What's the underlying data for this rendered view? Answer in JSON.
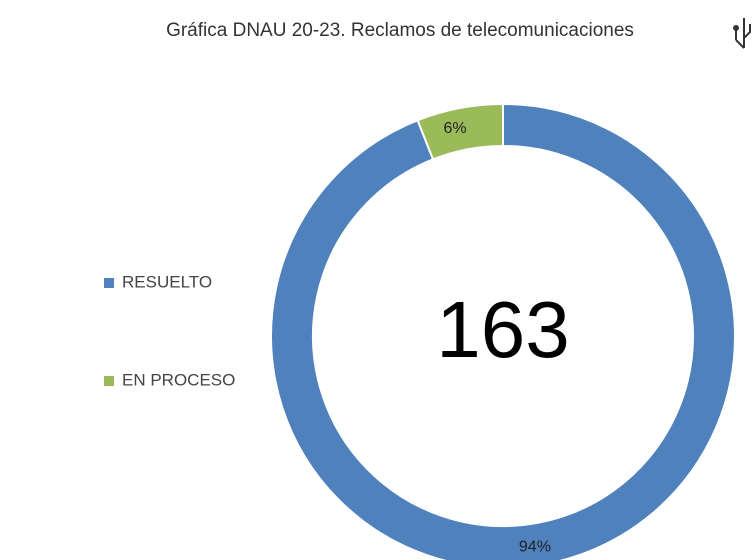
{
  "chart_data": {
    "type": "donut",
    "title": "Gráfica DNAU 20-23. Reclamos de telecomunicaciones",
    "total": 163,
    "categories": [
      "RESUELTO",
      "EN PROCESO"
    ],
    "values": [
      94,
      6
    ],
    "value_labels": [
      "94%",
      "6%"
    ],
    "colors": [
      "#4f81bd",
      "#9bbb59"
    ],
    "legend": "left"
  }
}
